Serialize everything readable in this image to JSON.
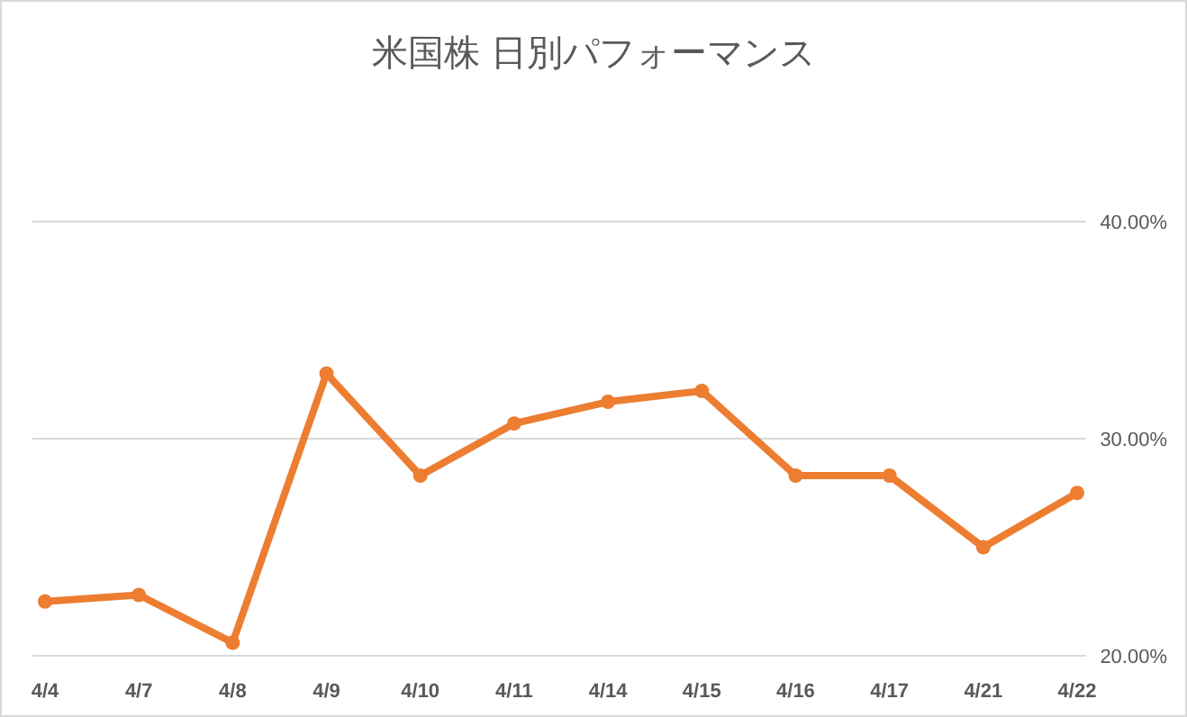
{
  "chart_data": {
    "type": "line",
    "title": "米国株 日別パフォーマンス",
    "categories": [
      "4/4",
      "4/7",
      "4/8",
      "4/9",
      "4/10",
      "4/11",
      "4/14",
      "4/15",
      "4/16",
      "4/17",
      "4/21",
      "4/22"
    ],
    "series": [
      {
        "color": "#ed7d31",
        "values": [
          22.5,
          22.8,
          20.6,
          33.0,
          28.3,
          30.7,
          31.7,
          32.2,
          28.3,
          28.3,
          25.0,
          27.5
        ]
      }
    ],
    "ylim": [
      20,
      40
    ],
    "yticks": [
      {
        "value": 20,
        "label": "20.00%"
      },
      {
        "value": 30,
        "label": "30.00%"
      },
      {
        "value": 40,
        "label": "40.00%"
      }
    ],
    "grid": "y",
    "marker": "circle"
  }
}
